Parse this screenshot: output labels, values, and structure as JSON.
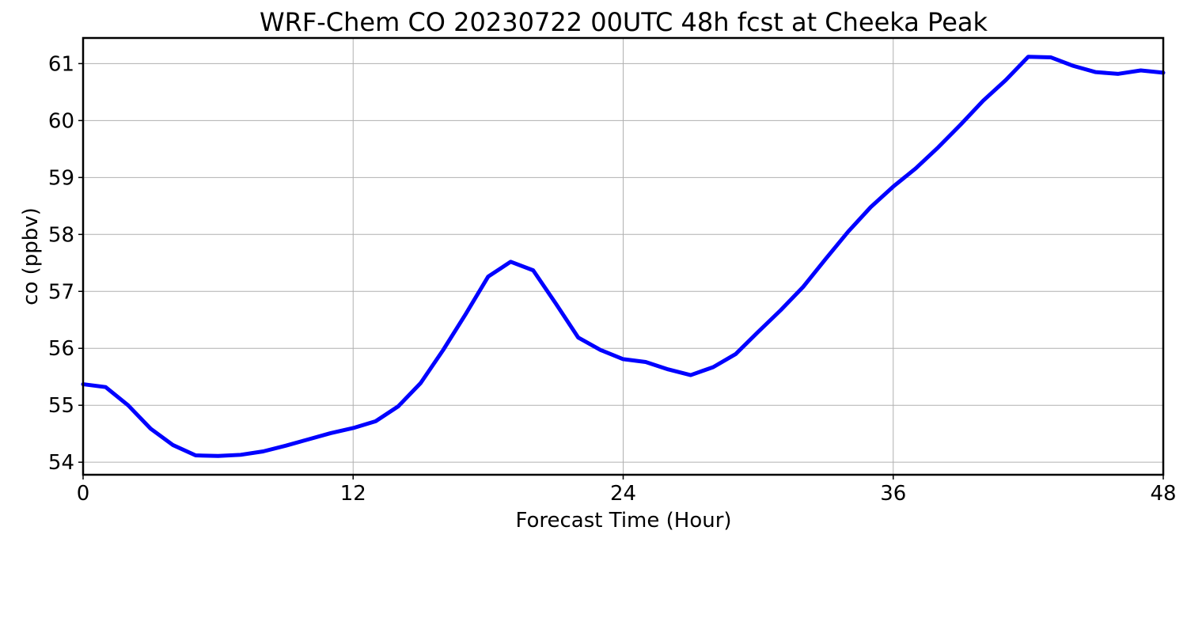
{
  "chart_data": {
    "type": "line",
    "title": "WRF-Chem CO  20230722 00UTC 48h fcst at Cheeka Peak",
    "xlabel": "Forecast Time (Hour)",
    "ylabel": "co  (ppbv)",
    "xlim": [
      0,
      48
    ],
    "ylim": [
      53.78,
      61.45
    ],
    "xticks": [
      0,
      12,
      24,
      36,
      48
    ],
    "yticks": [
      54,
      55,
      56,
      57,
      58,
      59,
      60,
      61
    ],
    "grid": true,
    "series": [
      {
        "color": "#0000ff",
        "x": [
          0,
          1,
          2,
          3,
          4,
          5,
          6,
          7,
          8,
          9,
          10,
          11,
          12,
          13,
          14,
          15,
          16,
          17,
          18,
          19,
          20,
          21,
          22,
          23,
          24,
          25,
          26,
          27,
          28,
          29,
          30,
          31,
          32,
          33,
          34,
          35,
          36,
          37,
          38,
          39,
          40,
          41,
          42,
          43,
          44,
          45,
          46,
          47,
          48
        ],
        "y": [
          55.37,
          55.32,
          55.0,
          54.59,
          54.3,
          54.12,
          54.11,
          54.13,
          54.19,
          54.29,
          54.4,
          54.51,
          54.6,
          54.72,
          54.98,
          55.39,
          55.97,
          56.6,
          57.26,
          57.52,
          57.37,
          56.79,
          56.19,
          55.97,
          55.81,
          55.76,
          55.63,
          55.53,
          55.67,
          55.9,
          56.29,
          56.67,
          57.08,
          57.57,
          58.05,
          58.48,
          58.84,
          59.16,
          59.53,
          59.93,
          60.35,
          60.71,
          61.12,
          61.11,
          60.96,
          60.85,
          60.82,
          60.88,
          60.84
        ]
      }
    ]
  }
}
